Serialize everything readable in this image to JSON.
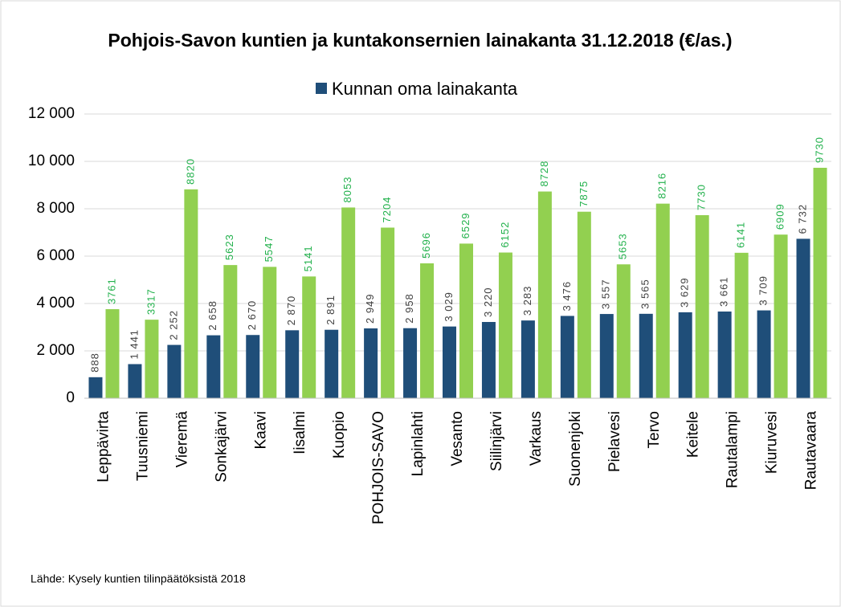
{
  "chart_data": {
    "type": "bar",
    "title": "Pohjois-Savon kuntien ja kuntakonsernien lainakanta 31.12.2018 (€/as.)",
    "categories": [
      "Leppävirta",
      "Tuusniemi",
      "Vieremä",
      "Sonkajärvi",
      "Kaavi",
      "Iisalmi",
      "Kuopio",
      "POHJOIS-SAVO",
      "Lapinlahti",
      "Vesanto",
      "Siilinjärvi",
      "Varkaus",
      "Suonenjoki",
      "Pielavesi",
      "Tervo",
      "Keitele",
      "Rautalampi",
      "Kiuruvesi",
      "Rautavaara"
    ],
    "series": [
      {
        "name": "Kunnan oma lainakanta",
        "color": "#1f4e79",
        "values": [
          888,
          1441,
          2252,
          2658,
          2670,
          2870,
          2891,
          2949,
          2958,
          3029,
          3220,
          3283,
          3476,
          3557,
          3565,
          3629,
          3661,
          3709,
          6732
        ],
        "value_labels": [
          "888",
          "1 441",
          "2 252",
          "2 658",
          "2 670",
          "2 870",
          "2 891",
          "2 949",
          "2 958",
          "3 029",
          "3 220",
          "3 283",
          "3 476",
          "3 557",
          "3 565",
          "3 629",
          "3 661",
          "3 709",
          "6 732"
        ]
      },
      {
        "color": "#92d050",
        "values": [
          3761,
          3317,
          8820,
          5623,
          5547,
          5141,
          8053,
          7204,
          5696,
          6529,
          6152,
          8728,
          7875,
          5653,
          8216,
          7730,
          6141,
          6909,
          9730
        ]
      }
    ],
    "ylim": [
      0,
      12000
    ],
    "yticks": [
      0,
      {
        "value": 2000,
        "label": "2 000"
      },
      {
        "value": 4000,
        "label": "4 000"
      },
      {
        "value": 6000,
        "label": "6 000"
      },
      {
        "value": 8000,
        "label": "8 000"
      },
      {
        "value": 10000,
        "label": "10 000"
      },
      {
        "value": 12000,
        "label": "12 000"
      }
    ],
    "grid": true,
    "source": "Lähde: Kysely kuntien tilinpäätöksistä 2018"
  }
}
